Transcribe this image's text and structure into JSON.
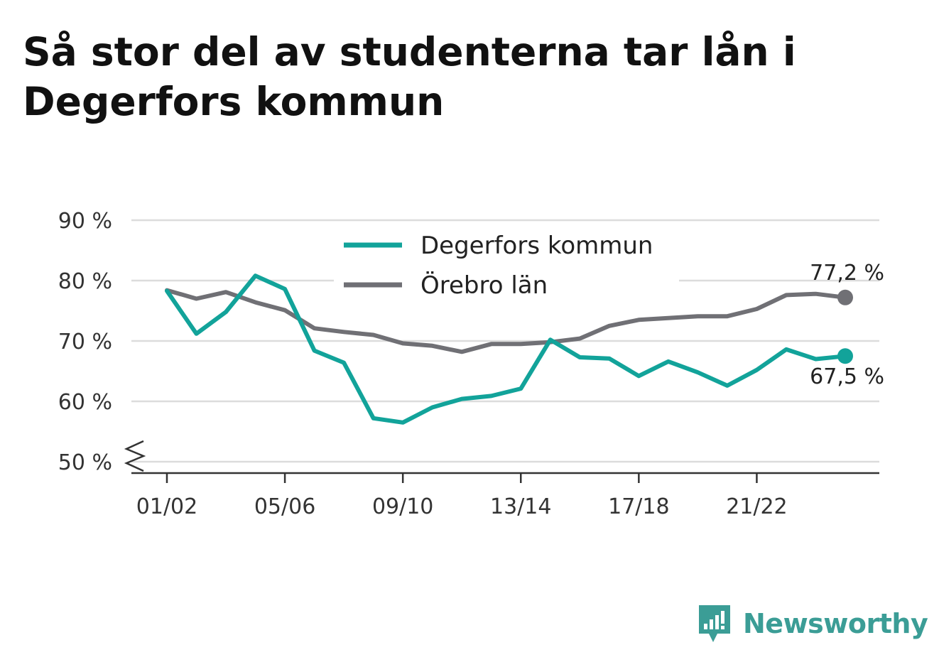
{
  "title": "Så stor del av studenterna tar lån i Degerfors kommun",
  "brand": {
    "name": "Newsworthy",
    "icon": "newsworthy-logo-icon",
    "color": "#3b9d96"
  },
  "chart_data": {
    "type": "line",
    "y_tick_labels": [
      "50 %",
      "60 %",
      "70 %",
      "80 %",
      "90 %"
    ],
    "y_ticks": [
      50,
      60,
      70,
      80,
      90
    ],
    "ylim": [
      50,
      90
    ],
    "y_axis_broken": true,
    "x_labels": [
      "01/02",
      "02/03",
      "03/04",
      "04/05",
      "05/06",
      "06/07",
      "07/08",
      "08/09",
      "09/10",
      "10/11",
      "11/12",
      "12/13",
      "13/14",
      "14/15",
      "15/16",
      "16/17",
      "17/18",
      "18/19",
      "19/20",
      "20/21",
      "21/22",
      "22/23",
      "23/24",
      "24/25"
    ],
    "x_tick_labels": [
      "01/02",
      "05/06",
      "09/10",
      "13/14",
      "17/18",
      "21/22"
    ],
    "grid": true,
    "legend_position": "top-center",
    "series": [
      {
        "name": "Degerfors kommun",
        "color": "#12a39a",
        "values": [
          78.3,
          71.2,
          74.8,
          80.8,
          78.6,
          68.4,
          66.4,
          57.2,
          56.5,
          59.0,
          60.4,
          60.9,
          62.1,
          70.2,
          67.3,
          67.1,
          64.2,
          66.6,
          64.8,
          62.6,
          65.2,
          68.6,
          67.0,
          67.5
        ],
        "end_label": "67,5 %"
      },
      {
        "name": "Örebro län",
        "color": "#707075",
        "values": [
          78.4,
          77.0,
          78.1,
          76.4,
          75.1,
          72.1,
          71.5,
          71.0,
          69.6,
          69.2,
          68.2,
          69.5,
          69.5,
          69.8,
          70.4,
          72.5,
          73.5,
          73.8,
          74.1,
          74.1,
          75.3,
          77.6,
          77.8,
          77.2
        ],
        "end_label": "77,2 %"
      }
    ]
  }
}
